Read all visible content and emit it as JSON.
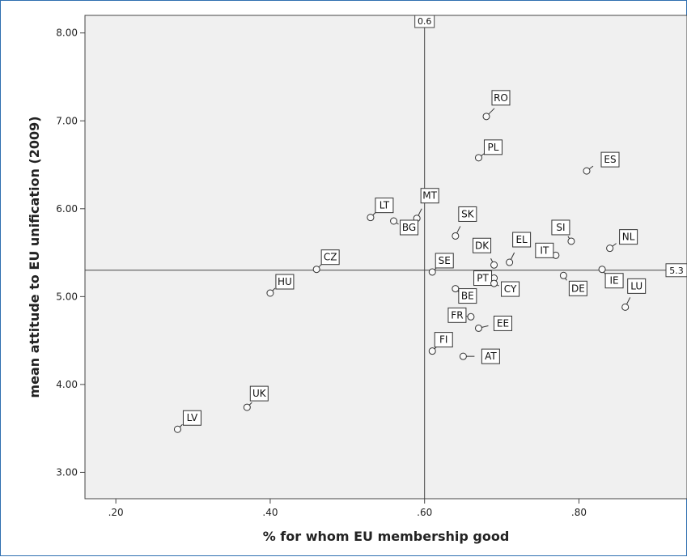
{
  "chart_data": {
    "type": "scatter",
    "title": "",
    "xlabel": "% for whom EU membership good",
    "ylabel": "mean attitude to EU unification (2009)",
    "xlim": [
      0.16,
      0.94
    ],
    "ylim": [
      2.7,
      8.2
    ],
    "x_ticks": [
      0.2,
      0.4,
      0.6,
      0.8
    ],
    "x_tick_labels": [
      ".20",
      ".40",
      ".60",
      ".80"
    ],
    "y_ticks": [
      3,
      4,
      5,
      6,
      7,
      8
    ],
    "y_tick_labels": [
      "3.00",
      "4.00",
      "5.00",
      "6.00",
      "7.00",
      "8.00"
    ],
    "grid": false,
    "reference_lines": [
      {
        "axis": "x",
        "value": 0.6,
        "label": "0.6"
      },
      {
        "axis": "y",
        "value": 5.3,
        "label": "5.3"
      }
    ],
    "points": [
      {
        "label": "RO",
        "x": 0.68,
        "y": 7.05
      },
      {
        "label": "PL",
        "x": 0.67,
        "y": 6.58
      },
      {
        "label": "ES",
        "x": 0.81,
        "y": 6.43
      },
      {
        "label": "MT",
        "x": 0.59,
        "y": 5.89
      },
      {
        "label": "LT",
        "x": 0.53,
        "y": 5.9
      },
      {
        "label": "BG",
        "x": 0.56,
        "y": 5.86
      },
      {
        "label": "SK",
        "x": 0.64,
        "y": 5.69
      },
      {
        "label": "SI",
        "x": 0.79,
        "y": 5.63
      },
      {
        "label": "NL",
        "x": 0.84,
        "y": 5.55
      },
      {
        "label": "EL",
        "x": 0.71,
        "y": 5.39
      },
      {
        "label": "DK",
        "x": 0.69,
        "y": 5.36
      },
      {
        "label": "IT",
        "x": 0.77,
        "y": 5.47
      },
      {
        "label": "SE",
        "x": 0.61,
        "y": 5.28
      },
      {
        "label": "CZ",
        "x": 0.46,
        "y": 5.31
      },
      {
        "label": "IE",
        "x": 0.83,
        "y": 5.31
      },
      {
        "label": "DE",
        "x": 0.78,
        "y": 5.24
      },
      {
        "label": "PT",
        "x": 0.69,
        "y": 5.21
      },
      {
        "label": "CY",
        "x": 0.69,
        "y": 5.15
      },
      {
        "label": "BE",
        "x": 0.64,
        "y": 5.09
      },
      {
        "label": "HU",
        "x": 0.4,
        "y": 5.04
      },
      {
        "label": "LU",
        "x": 0.86,
        "y": 4.88
      },
      {
        "label": "FR",
        "x": 0.66,
        "y": 4.77
      },
      {
        "label": "EE",
        "x": 0.67,
        "y": 4.64
      },
      {
        "label": "FI",
        "x": 0.61,
        "y": 4.38
      },
      {
        "label": "AT",
        "x": 0.65,
        "y": 4.32
      },
      {
        "label": "UK",
        "x": 0.37,
        "y": 3.74
      },
      {
        "label": "LV",
        "x": 0.28,
        "y": 3.49
      }
    ]
  }
}
